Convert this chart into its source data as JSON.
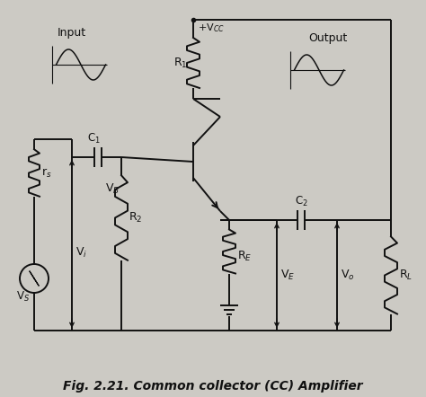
{
  "title": "Fig. 2.21. Common collector (CC) Amplifier",
  "background_color": "#cccac4",
  "line_color": "#111111",
  "text_color": "#111111",
  "fig_width": 4.74,
  "fig_height": 4.42,
  "dpi": 100
}
